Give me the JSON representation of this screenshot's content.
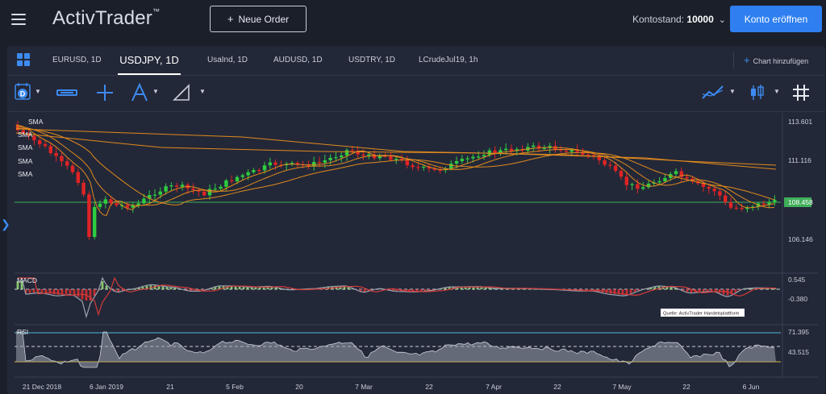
{
  "header": {
    "logo_text": "ActivTrader",
    "logo_tm": "™",
    "new_order_label": "Neue Order",
    "balance_label": "Kontostand:",
    "balance_value": "10000",
    "open_account_label": "Konto eröffnen"
  },
  "tabs": [
    {
      "label": "EURUSD, 1D",
      "active": false
    },
    {
      "label": "USDJPY, 1D",
      "active": true
    },
    {
      "label": "UsaInd, 1D",
      "active": false
    },
    {
      "label": "AUDUSD, 1D",
      "active": false
    },
    {
      "label": "USDTRY, 1D",
      "active": false
    },
    {
      "label": "LCrudeJul19, 1h",
      "active": false
    }
  ],
  "add_chart_label": "Chart hinzufügen",
  "toolbar": {
    "period_badge": "D",
    "icons": [
      "calendar-icon",
      "bar-style-icon",
      "crosshair-icon",
      "pitchfork-icon",
      "drawing-icon",
      "indicators-icon",
      "candle-type-icon",
      "grid-icon"
    ]
  },
  "indicators": {
    "sma_labels": [
      "SMA",
      "SMA",
      "SMA",
      "SMA",
      "SMA"
    ],
    "macd_label": "MACD",
    "rsi_label": "RSI",
    "source_note": "Quelle: ActivTrader Handelsplattform"
  },
  "price_axis": {
    "ticks": [
      "113.601",
      "111.116",
      "108.458",
      "106.146"
    ],
    "current_price": "108.458"
  },
  "macd_axis": {
    "ticks": [
      "0.545",
      "-0.380"
    ]
  },
  "rsi_axis": {
    "ticks": [
      "71.395",
      "43.515"
    ]
  },
  "time_axis": {
    "ticks": [
      "21 Dec 2018",
      "6 Jan 2019",
      "21",
      "5 Feb",
      "20",
      "7 Mar",
      "22",
      "7 Apr",
      "22",
      "7 May",
      "22",
      "6 Jun"
    ]
  },
  "colors": {
    "background": "#1b1f2a",
    "panel": "#232838",
    "accent": "#2f7ff0",
    "candle_up": "#2ecc40",
    "candle_down": "#e02424",
    "sma": "#e08a1e",
    "current_price_line": "#3fae5a",
    "rsi_upper": "#49b8d6",
    "rsi_lower": "#d9b43a"
  }
}
